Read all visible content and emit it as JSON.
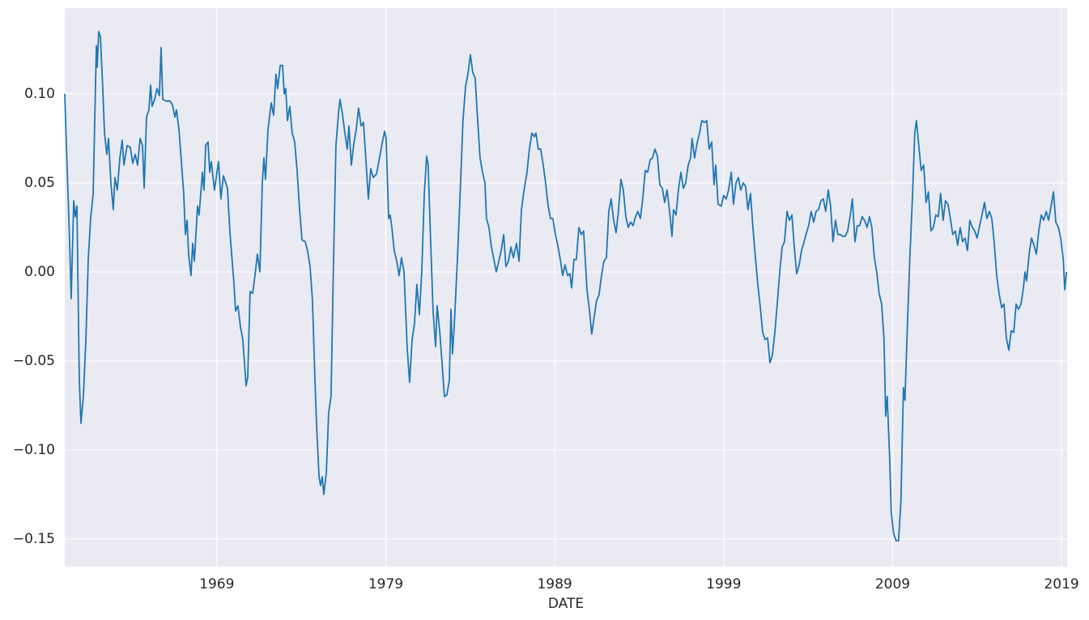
{
  "chart_data": {
    "type": "line",
    "xlabel": "DATE",
    "color": "#1f77b4",
    "grid": true,
    "xlim": [
      1960.0,
      2019.33
    ],
    "ylim": [
      -0.1655,
      0.1482
    ],
    "xticks": [
      1969,
      1979,
      1989,
      1999,
      2009,
      2019
    ],
    "yticks": [
      {
        "value": -0.15,
        "label": "−0.15"
      },
      {
        "value": -0.1,
        "label": "−0.10"
      },
      {
        "value": -0.05,
        "label": "−0.05"
      },
      {
        "value": 0,
        "label": "0.00"
      },
      {
        "value": 0.05,
        "label": "0.05"
      },
      {
        "value": 0.1,
        "label": "0.10"
      }
    ],
    "x": [
      1960.0,
      1960.1,
      1960.29,
      1960.38,
      1960.53,
      1960.62,
      1960.72,
      1960.86,
      1960.96,
      1961.1,
      1961.25,
      1961.39,
      1961.53,
      1961.68,
      1961.87,
      1961.92,
      1962.01,
      1962.11,
      1962.25,
      1962.35,
      1962.49,
      1962.59,
      1962.73,
      1962.87,
      1962.97,
      1963.11,
      1963.26,
      1963.4,
      1963.5,
      1963.69,
      1963.88,
      1964.02,
      1964.17,
      1964.31,
      1964.46,
      1964.6,
      1964.7,
      1964.84,
      1964.98,
      1965.08,
      1965.17,
      1965.32,
      1965.46,
      1965.6,
      1965.7,
      1965.8,
      1965.99,
      1966.23,
      1966.37,
      1966.52,
      1966.61,
      1966.76,
      1966.9,
      1967.04,
      1967.14,
      1967.24,
      1967.33,
      1967.47,
      1967.57,
      1967.67,
      1967.86,
      1967.95,
      1968.15,
      1968.24,
      1968.34,
      1968.48,
      1968.58,
      1968.67,
      1968.86,
      1969.1,
      1969.24,
      1969.39,
      1969.63,
      1969.77,
      1970.01,
      1970.11,
      1970.25,
      1970.4,
      1970.54,
      1970.73,
      1970.83,
      1970.97,
      1971.12,
      1971.26,
      1971.4,
      1971.55,
      1971.69,
      1971.79,
      1971.88,
      1972.03,
      1972.22,
      1972.36,
      1972.5,
      1972.6,
      1972.75,
      1972.89,
      1972.99,
      1973.08,
      1973.18,
      1973.32,
      1973.46,
      1973.61,
      1973.75,
      1973.9,
      1974.04,
      1974.23,
      1974.37,
      1974.52,
      1974.66,
      1974.81,
      1974.9,
      1975.05,
      1975.14,
      1975.24,
      1975.33,
      1975.48,
      1975.62,
      1975.76,
      1975.91,
      1976.05,
      1976.2,
      1976.29,
      1976.43,
      1976.58,
      1976.72,
      1976.82,
      1976.96,
      1977.11,
      1977.25,
      1977.39,
      1977.54,
      1977.68,
      1977.83,
      1977.97,
      1978.11,
      1978.26,
      1978.45,
      1978.59,
      1978.78,
      1978.93,
      1979.02,
      1979.17,
      1979.26,
      1979.36,
      1979.5,
      1979.65,
      1979.79,
      1979.93,
      1980.08,
      1980.27,
      1980.41,
      1980.56,
      1980.7,
      1980.84,
      1980.99,
      1981.13,
      1981.28,
      1981.42,
      1981.51,
      1981.66,
      1981.8,
      1981.95,
      1982.04,
      1982.19,
      1982.33,
      1982.47,
      1982.62,
      1982.76,
      1982.86,
      1982.95,
      1983.05,
      1983.24,
      1983.38,
      1983.57,
      1983.72,
      1983.86,
      1984.01,
      1984.15,
      1984.29,
      1984.44,
      1984.58,
      1984.73,
      1984.87,
      1984.96,
      1985.11,
      1985.25,
      1985.4,
      1985.54,
      1985.69,
      1985.83,
      1985.98,
      1986.11,
      1986.26,
      1986.41,
      1986.55,
      1986.74,
      1986.89,
      1987.03,
      1987.17,
      1987.36,
      1987.5,
      1987.65,
      1987.79,
      1987.89,
      1988.03,
      1988.17,
      1988.32,
      1988.46,
      1988.61,
      1988.75,
      1988.89,
      1989.04,
      1989.18,
      1989.33,
      1989.47,
      1989.61,
      1989.76,
      1989.9,
      1990.0,
      1990.14,
      1990.28,
      1990.43,
      1990.57,
      1990.71,
      1990.91,
      1991.05,
      1991.19,
      1991.34,
      1991.48,
      1991.62,
      1991.77,
      1991.91,
      1992.06,
      1992.2,
      1992.34,
      1992.49,
      1992.63,
      1992.77,
      1992.92,
      1993.06,
      1993.21,
      1993.35,
      1993.49,
      1993.64,
      1993.78,
      1993.92,
      1994.07,
      1994.21,
      1994.36,
      1994.5,
      1994.65,
      1994.79,
      1994.93,
      1995.08,
      1995.22,
      1995.37,
      1995.51,
      1995.65,
      1995.8,
      1995.94,
      1996.03,
      1996.18,
      1996.32,
      1996.47,
      1996.61,
      1996.75,
      1996.9,
      1997.04,
      1997.13,
      1997.28,
      1997.42,
      1997.57,
      1997.71,
      1997.86,
      1998.0,
      1998.14,
      1998.29,
      1998.43,
      1998.53,
      1998.67,
      1998.86,
      1999.0,
      1999.15,
      1999.29,
      1999.45,
      1999.58,
      1999.73,
      1999.87,
      2000.01,
      2000.16,
      2000.3,
      2000.44,
      2000.59,
      2000.73,
      2000.88,
      2001.02,
      2001.17,
      2001.31,
      2001.45,
      2001.6,
      2001.74,
      2001.88,
      2002.03,
      2002.17,
      2002.32,
      2002.46,
      2002.6,
      2002.75,
      2002.89,
      2003.04,
      2003.18,
      2003.32,
      2003.47,
      2003.61,
      2003.76,
      2003.9,
      2004.03,
      2004.18,
      2004.33,
      2004.47,
      2004.61,
      2004.76,
      2004.9,
      2005.04,
      2005.19,
      2005.33,
      2005.47,
      2005.62,
      2005.76,
      2005.91,
      2006.05,
      2006.19,
      2006.34,
      2006.48,
      2006.62,
      2006.77,
      2006.91,
      2007.05,
      2007.2,
      2007.34,
      2007.49,
      2007.63,
      2007.77,
      2007.92,
      2008.06,
      2008.2,
      2008.35,
      2008.49,
      2008.59,
      2008.68,
      2008.83,
      2008.92,
      2009.06,
      2009.21,
      2009.35,
      2009.49,
      2009.64,
      2009.73,
      2009.88,
      2010.02,
      2010.17,
      2010.31,
      2010.41,
      2010.55,
      2010.69,
      2010.84,
      2010.98,
      2011.12,
      2011.27,
      2011.41,
      2011.56,
      2011.7,
      2011.84,
      2011.99,
      2012.13,
      2012.28,
      2012.42,
      2012.56,
      2012.71,
      2012.85,
      2013.0,
      2013.14,
      2013.29,
      2013.43,
      2013.57,
      2013.72,
      2013.86,
      2014.0,
      2014.15,
      2014.29,
      2014.44,
      2014.58,
      2014.73,
      2014.87,
      2015.01,
      2015.16,
      2015.3,
      2015.45,
      2015.59,
      2015.73,
      2015.88,
      2016.02,
      2016.17,
      2016.31,
      2016.45,
      2016.6,
      2016.74,
      2016.84,
      2016.93,
      2017.08,
      2017.22,
      2017.37,
      2017.51,
      2017.65,
      2017.8,
      2017.94,
      2018.09,
      2018.23,
      2018.38,
      2018.52,
      2018.66,
      2018.81,
      2018.95,
      2019.1,
      2019.19,
      2019.29
    ],
    "values": [
      0.1,
      0.07,
      0.016,
      -0.015,
      0.04,
      0.031,
      0.037,
      -0.061,
      -0.085,
      -0.07,
      -0.038,
      0.007,
      0.03,
      0.044,
      0.127,
      0.115,
      0.135,
      0.132,
      0.103,
      0.078,
      0.066,
      0.075,
      0.05,
      0.035,
      0.053,
      0.046,
      0.064,
      0.074,
      0.06,
      0.071,
      0.07,
      0.061,
      0.066,
      0.06,
      0.075,
      0.071,
      0.047,
      0.087,
      0.091,
      0.105,
      0.093,
      0.097,
      0.103,
      0.099,
      0.126,
      0.097,
      0.096,
      0.096,
      0.094,
      0.087,
      0.091,
      0.08,
      0.062,
      0.044,
      0.021,
      0.029,
      0.01,
      -0.002,
      0.016,
      0.006,
      0.037,
      0.032,
      0.056,
      0.046,
      0.071,
      0.073,
      0.056,
      0.062,
      0.046,
      0.062,
      0.041,
      0.054,
      0.047,
      0.023,
      -0.006,
      -0.022,
      -0.019,
      -0.031,
      -0.038,
      -0.064,
      -0.059,
      -0.011,
      -0.012,
      -0.002,
      0.01,
      0,
      0.05,
      0.064,
      0.052,
      0.08,
      0.095,
      0.088,
      0.111,
      0.103,
      0.116,
      0.116,
      0.1,
      0.103,
      0.085,
      0.093,
      0.078,
      0.073,
      0.057,
      0.035,
      0.018,
      0.017,
      0.012,
      0.003,
      -0.016,
      -0.061,
      -0.085,
      -0.115,
      -0.12,
      -0.115,
      -0.125,
      -0.113,
      -0.079,
      -0.07,
      0.007,
      0.071,
      0.089,
      0.097,
      0.089,
      0.078,
      0.069,
      0.082,
      0.06,
      0.072,
      0.08,
      0.092,
      0.082,
      0.084,
      0.062,
      0.041,
      0.058,
      0.053,
      0.055,
      0.062,
      0.072,
      0.079,
      0.075,
      0.03,
      0.032,
      0.025,
      0.012,
      0.006,
      -0.002,
      0.008,
      0,
      -0.043,
      -0.062,
      -0.038,
      -0.029,
      -0.007,
      -0.024,
      0,
      0.044,
      0.065,
      0.06,
      0.016,
      -0.022,
      -0.042,
      -0.019,
      -0.033,
      -0.051,
      -0.07,
      -0.069,
      -0.061,
      -0.021,
      -0.046,
      -0.031,
      0.007,
      0.039,
      0.085,
      0.104,
      0.111,
      0.122,
      0.112,
      0.109,
      0.085,
      0.064,
      0.056,
      0.05,
      0.03,
      0.025,
      0.014,
      0.007,
      0,
      0.006,
      0.012,
      0.021,
      0.003,
      0.006,
      0.014,
      0.008,
      0.016,
      0.006,
      0.035,
      0.045,
      0.056,
      0.069,
      0.078,
      0.076,
      0.078,
      0.069,
      0.069,
      0.06,
      0.05,
      0.037,
      0.03,
      0.03,
      0.021,
      0.015,
      0.007,
      -0.002,
      0.004,
      -0.002,
      -0.001,
      -0.009,
      0.007,
      0.007,
      0.025,
      0.021,
      0.023,
      -0.01,
      -0.021,
      -0.035,
      -0.025,
      -0.016,
      -0.013,
      -0.002,
      0.006,
      0.008,
      0.034,
      0.041,
      0.029,
      0.022,
      0.034,
      0.052,
      0.046,
      0.031,
      0.025,
      0.028,
      0.026,
      0.031,
      0.034,
      0.03,
      0.041,
      0.057,
      0.056,
      0.063,
      0.064,
      0.069,
      0.065,
      0.049,
      0.047,
      0.039,
      0.046,
      0.034,
      0.02,
      0.035,
      0.032,
      0.046,
      0.056,
      0.047,
      0.05,
      0.06,
      0.064,
      0.075,
      0.064,
      0.072,
      0.078,
      0.085,
      0.084,
      0.085,
      0.069,
      0.073,
      0.049,
      0.06,
      0.038,
      0.037,
      0.043,
      0.041,
      0.046,
      0.056,
      0.038,
      0.05,
      0.053,
      0.046,
      0.05,
      0.048,
      0.035,
      0.044,
      0.025,
      0.008,
      -0.007,
      -0.02,
      -0.034,
      -0.038,
      -0.037,
      -0.051,
      -0.047,
      -0.034,
      -0.018,
      0,
      0.014,
      0.017,
      0.034,
      0.029,
      0.032,
      0.014,
      -0.001,
      0.004,
      0.012,
      0.017,
      0.022,
      0.026,
      0.034,
      0.028,
      0.034,
      0.035,
      0.04,
      0.041,
      0.034,
      0.046,
      0.037,
      0.017,
      0.029,
      0.021,
      0.021,
      0.02,
      0.02,
      0.023,
      0.031,
      0.041,
      0.017,
      0.026,
      0.026,
      0.031,
      0.029,
      0.025,
      0.031,
      0.025,
      0.008,
      0,
      -0.012,
      -0.018,
      -0.038,
      -0.081,
      -0.07,
      -0.106,
      -0.135,
      -0.147,
      -0.151,
      -0.151,
      -0.129,
      -0.065,
      -0.072,
      -0.029,
      0.008,
      0.041,
      0.078,
      0.085,
      0.071,
      0.057,
      0.06,
      0.039,
      0.045,
      0.023,
      0.025,
      0.032,
      0.031,
      0.044,
      0.029,
      0.04,
      0.038,
      0.03,
      0.021,
      0.023,
      0.015,
      0.025,
      0.017,
      0.019,
      0.012,
      0.029,
      0.025,
      0.023,
      0.019,
      0.026,
      0.032,
      0.039,
      0.03,
      0.034,
      0.03,
      0.017,
      -0.002,
      -0.012,
      -0.02,
      -0.018,
      -0.037,
      -0.044,
      -0.033,
      -0.034,
      -0.018,
      -0.021,
      -0.018,
      -0.009,
      0,
      -0.005,
      0.01,
      0.019,
      0.015,
      0.01,
      0.023,
      0.032,
      0.029,
      0.034,
      0.029,
      0.037,
      0.045,
      0.028,
      0.025,
      0.019,
      0.007,
      -0.01,
      0
    ]
  }
}
